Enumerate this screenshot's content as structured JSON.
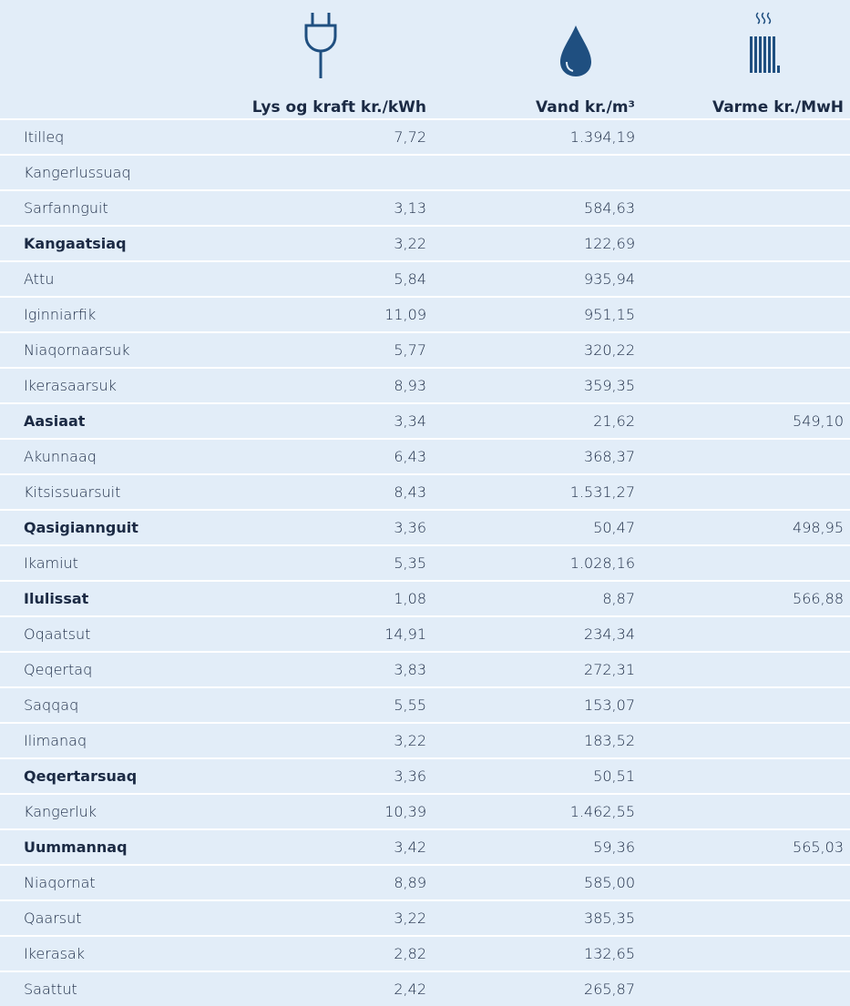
{
  "table": {
    "header": [
      "Lys og kraft kr./kWh",
      "Vand kr./m³",
      "Varme kr./MwH"
    ],
    "rows": [
      {
        "cells": [
          "Itilleq",
          "7,72",
          "1.394,19",
          null
        ],
        "bold": false
      },
      {
        "cells": [
          "Kangerlussuaq",
          null,
          null,
          null
        ],
        "bold": false
      },
      {
        "cells": [
          "Sarfannguit",
          "3,13",
          "584,63",
          null
        ],
        "bold": false
      },
      {
        "cells": [
          "Kangaatsiaq",
          "3,22",
          "122,69",
          null
        ],
        "bold": true
      },
      {
        "cells": [
          "Attu",
          "5,84",
          "935,94",
          null
        ],
        "bold": false
      },
      {
        "cells": [
          "Iginniarfik",
          "11,09",
          "951,15",
          null
        ],
        "bold": false
      },
      {
        "cells": [
          "Niaqornaarsuk",
          "5,77",
          "320,22",
          null
        ],
        "bold": false
      },
      {
        "cells": [
          "Ikerasaarsuk",
          "8,93",
          "359,35",
          null
        ],
        "bold": false
      },
      {
        "cells": [
          "Aasiaat",
          "3,34",
          "21,62",
          "549,10"
        ],
        "bold": true
      },
      {
        "cells": [
          "Akunnaaq",
          "6,43",
          "368,37",
          null
        ],
        "bold": false
      },
      {
        "cells": [
          "Kitsissuarsuit",
          "8,43",
          "1.531,27",
          null
        ],
        "bold": false
      },
      {
        "cells": [
          "Qasigiannguit",
          "3,36",
          "50,47",
          "498,95"
        ],
        "bold": true
      },
      {
        "cells": [
          "Ikamiut",
          "5,35",
          "1.028,16",
          null
        ],
        "bold": false
      },
      {
        "cells": [
          "Ilulissat",
          "1,08",
          "8,87",
          "566,88"
        ],
        "bold": true
      },
      {
        "cells": [
          "Oqaatsut",
          "14,91",
          "234,34",
          null
        ],
        "bold": false
      },
      {
        "cells": [
          "Qeqertaq",
          "3,83",
          "272,31",
          null
        ],
        "bold": false
      },
      {
        "cells": [
          "Saqqaq",
          "5,55",
          "153,07",
          null
        ],
        "bold": false
      },
      {
        "cells": [
          "Ilimanaq",
          "3,22",
          "183,52",
          null
        ],
        "bold": false
      },
      {
        "cells": [
          "Qeqertarsuaq",
          "3,36",
          "50,51",
          null
        ],
        "bold": true
      },
      {
        "cells": [
          "Kangerluk",
          "10,39",
          "1.462,55",
          null
        ],
        "bold": false
      },
      {
        "cells": [
          "Uummannaq",
          "3,42",
          "59,36",
          "565,03"
        ],
        "bold": true
      },
      {
        "cells": [
          "Niaqornat",
          "8,89",
          "585,00",
          null
        ],
        "bold": false
      },
      {
        "cells": [
          "Qaarsut",
          "3,22",
          "385,35",
          null
        ],
        "bold": false
      },
      {
        "cells": [
          "Ikerasak",
          "2,82",
          "132,65",
          null
        ],
        "bold": false
      },
      {
        "cells": [
          "Saattut",
          "2,42",
          "265,87",
          null
        ],
        "bold": false
      }
    ]
  }
}
